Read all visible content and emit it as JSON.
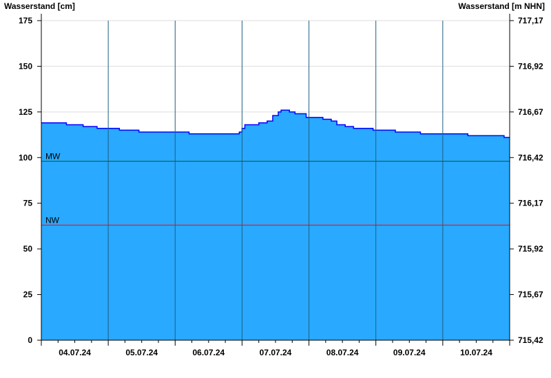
{
  "chart_data": {
    "type": "area",
    "ylabel_left": "Wasserstand [cm]",
    "ylabel_right": "Wasserstand [m NHN]",
    "ylim": [
      0,
      175
    ],
    "yticks_left": [
      "0",
      "25",
      "50",
      "75",
      "100",
      "125",
      "150",
      "175"
    ],
    "yticks_left_values": [
      0,
      25,
      50,
      75,
      100,
      125,
      150,
      175
    ],
    "yticks_right": [
      "715,42",
      "715,67",
      "715,92",
      "716,17",
      "716,42",
      "716,67",
      "716,92",
      "717,17"
    ],
    "xlim": [
      "04.07.24 00:00",
      "11.07.24 00:00"
    ],
    "xtick_labels": [
      "04.07.24",
      "05.07.24",
      "06.07.24",
      "07.07.24",
      "08.07.24",
      "09.07.24",
      "10.07.24"
    ],
    "grid": true,
    "reference_lines": [
      {
        "label": "MW",
        "value": 98,
        "color": "#0a5a2a"
      },
      {
        "label": "NW",
        "value": 63,
        "color": "#ff0000"
      }
    ],
    "colors": {
      "fill": "#29a9ff",
      "line": "#0000ff",
      "day_grid": "#1b5f80",
      "h_grid": "#dddddd"
    },
    "series": [
      {
        "points": [
          [
            "04.07.24 00:00",
            119
          ],
          [
            "04.07.24 09:00",
            118
          ],
          [
            "04.07.24 15:00",
            117
          ],
          [
            "04.07.24 20:00",
            116
          ],
          [
            "05.07.24 04:00",
            115
          ],
          [
            "05.07.24 11:00",
            114
          ],
          [
            "06.07.24 05:00",
            113
          ],
          [
            "06.07.24 23:00",
            114
          ],
          [
            "07.07.24 00:00",
            116
          ],
          [
            "07.07.24 01:00",
            118
          ],
          [
            "07.07.24 06:00",
            119
          ],
          [
            "07.07.24 09:00",
            120
          ],
          [
            "07.07.24 11:00",
            123
          ],
          [
            "07.07.24 13:00",
            125
          ],
          [
            "07.07.24 14:00",
            126
          ],
          [
            "07.07.24 17:00",
            125
          ],
          [
            "07.07.24 19:00",
            124
          ],
          [
            "07.07.24 23:00",
            122
          ],
          [
            "08.07.24 05:00",
            121
          ],
          [
            "08.07.24 08:00",
            120
          ],
          [
            "08.07.24 10:00",
            118
          ],
          [
            "08.07.24 13:00",
            117
          ],
          [
            "08.07.24 16:00",
            116
          ],
          [
            "08.07.24 23:00",
            115
          ],
          [
            "09.07.24 07:00",
            114
          ],
          [
            "09.07.24 16:00",
            113
          ],
          [
            "10.07.24 09:00",
            112
          ],
          [
            "10.07.24 22:00",
            111
          ],
          [
            "11.07.24 00:00",
            111
          ]
        ]
      }
    ]
  }
}
